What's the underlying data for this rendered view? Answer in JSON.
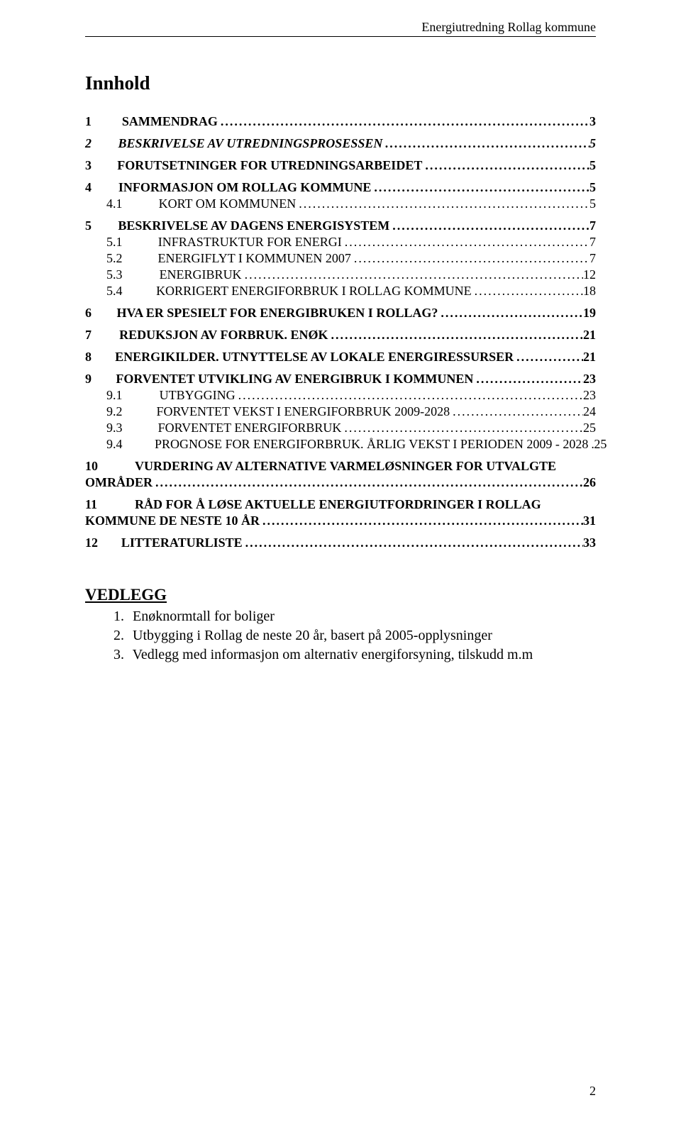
{
  "header": {
    "running_title": "Energiutredning Rollag kommune"
  },
  "title": "Innhold",
  "toc": [
    {
      "level": 1,
      "num": "1",
      "label": "SAMMENDRAG",
      "page": "3"
    },
    {
      "level": 1,
      "num": "2",
      "label": "BESKRIVELSE AV UTREDNINGSPROSESSEN",
      "page": "5",
      "italic": true
    },
    {
      "level": 1,
      "num": "3",
      "label": "FORUTSETNINGER FOR UTREDNINGSARBEIDET",
      "page": "5"
    },
    {
      "level": 1,
      "num": "4",
      "label": "INFORMASJON OM ROLLAG KOMMUNE",
      "page": "5"
    },
    {
      "level": 2,
      "num": "4.1",
      "label": "KORT OM KOMMUNEN",
      "page": "5",
      "smallcaps": true
    },
    {
      "level": 1,
      "num": "5",
      "label": "BESKRIVELSE AV DAGENS ENERGISYSTEM",
      "page": "7"
    },
    {
      "level": 2,
      "num": "5.1",
      "label": "INFRASTRUKTUR FOR ENERGI",
      "page": "7",
      "smallcaps": true
    },
    {
      "level": 2,
      "num": "5.2",
      "label": "ENERGIFLYT I KOMMUNEN 2007",
      "page": "7",
      "smallcaps": true
    },
    {
      "level": 2,
      "num": "5.3",
      "label": "ENERGIBRUK",
      "page": "12",
      "smallcaps": true
    },
    {
      "level": 2,
      "num": "5.4",
      "label": "KORRIGERT ENERGIFORBRUK I ROLLAG KOMMUNE",
      "page": "18",
      "smallcaps": true
    },
    {
      "level": 1,
      "num": "6",
      "label": "HVA ER SPESIELT FOR ENERGIBRUKEN I ROLLAG?",
      "page": "19"
    },
    {
      "level": 1,
      "num": "7",
      "label": "REDUKSJON AV FORBRUK. ENØK",
      "page": "21"
    },
    {
      "level": 1,
      "num": "8",
      "label": "ENERGIKILDER. UTNYTTELSE AV LOKALE ENERGIRESSURSER",
      "page": "21"
    },
    {
      "level": 1,
      "num": "9",
      "label": "FORVENTET UTVIKLING AV ENERGIBRUK I KOMMUNEN",
      "page": "23"
    },
    {
      "level": 2,
      "num": "9.1",
      "label": "UTBYGGING",
      "page": "23",
      "smallcaps": true
    },
    {
      "level": 2,
      "num": "9.2",
      "label": "FORVENTET VEKST I ENERGIFORBRUK 2009-2028",
      "page": "24",
      "smallcaps": true
    },
    {
      "level": 2,
      "num": "9.3",
      "label": "FORVENTET ENERGIFORBRUK",
      "page": "25",
      "smallcaps": true
    },
    {
      "level": 2,
      "num": "9.4",
      "label": "PROGNOSE FOR ENERGIFORBRUK. ÅRLIG VEKST I PERIODEN 2009 - 2028",
      "page": "25",
      "smallcaps": true
    },
    {
      "level": 1,
      "num": "10",
      "label_line1": "VURDERING AV ALTERNATIVE VARMELØSNINGER FOR UTVALGTE",
      "label_line2": "OMRÅDER",
      "page": "26",
      "multiline": true
    },
    {
      "level": 1,
      "num": "11",
      "label_line1": "RÅD FOR Å LØSE AKTUELLE ENERGIUTFORDRINGER I ROLLAG",
      "label_line2": "KOMMUNE DE NESTE 10 ÅR",
      "page": "31",
      "multiline": true
    },
    {
      "level": 1,
      "num": "12",
      "label": "LITTERATURLISTE",
      "page": "33"
    }
  ],
  "vedlegg": {
    "title": "VEDLEGG",
    "items": [
      {
        "num": "1.",
        "text": "Enøknormtall for boliger"
      },
      {
        "num": "2.",
        "text": "Utbygging i Rollag de neste 20 år, basert på 2005-opplysninger"
      },
      {
        "num": "3.",
        "text": "Vedlegg med informasjon om alternativ energiforsyning, tilskudd m.m"
      }
    ]
  },
  "page_number": "2"
}
